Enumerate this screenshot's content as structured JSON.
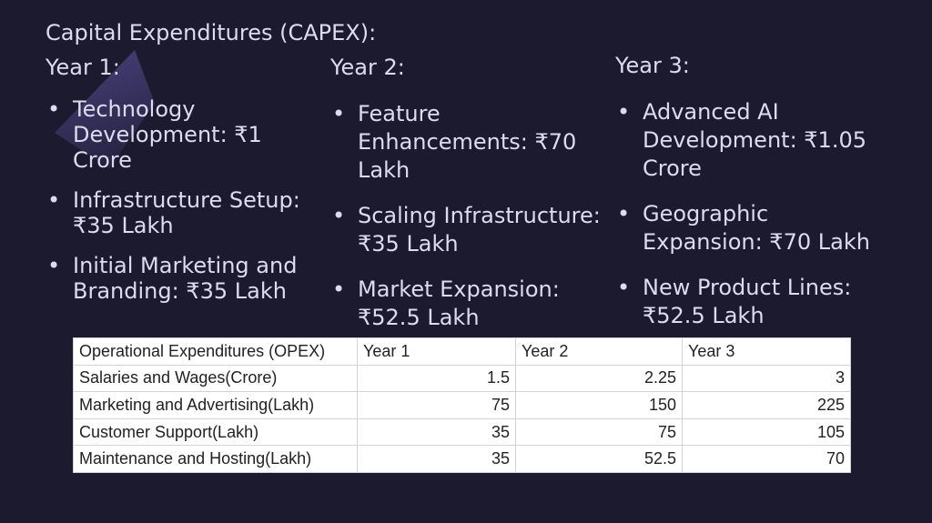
{
  "title": "Capital Expenditures (CAPEX):",
  "bullet": "•",
  "capex": [
    {
      "year": "Year 1:",
      "items": [
        "Technology Development: ₹1 Crore",
        "Infrastructure Setup: ₹35 Lakh",
        "Initial Marketing and Branding: ₹35 Lakh"
      ]
    },
    {
      "year": "Year 2:",
      "items": [
        "Feature Enhancements: ₹70 Lakh",
        "Scaling Infrastructure: ₹35 Lakh",
        "Market Expansion: ₹52.5 Lakh"
      ]
    },
    {
      "year": "Year 3:",
      "items": [
        "Advanced AI Development: ₹1.05 Crore",
        "Geographic Expansion: ₹70 Lakh",
        "New Product Lines: ₹52.5 Lakh"
      ]
    }
  ],
  "opex": {
    "headers": [
      "Operational Expenditures (OPEX)",
      "Year 1",
      "Year 2",
      "Year 3"
    ],
    "rows": [
      [
        "Salaries and Wages(Crore)",
        "1.5",
        "2.25",
        "3"
      ],
      [
        "Marketing and Advertising(Lakh)",
        "75",
        "150",
        "225"
      ],
      [
        "Customer Support(Lakh)",
        "35",
        "75",
        "105"
      ],
      [
        "Maintenance and Hosting(Lakh)",
        "35",
        "52.5",
        "70"
      ]
    ]
  }
}
